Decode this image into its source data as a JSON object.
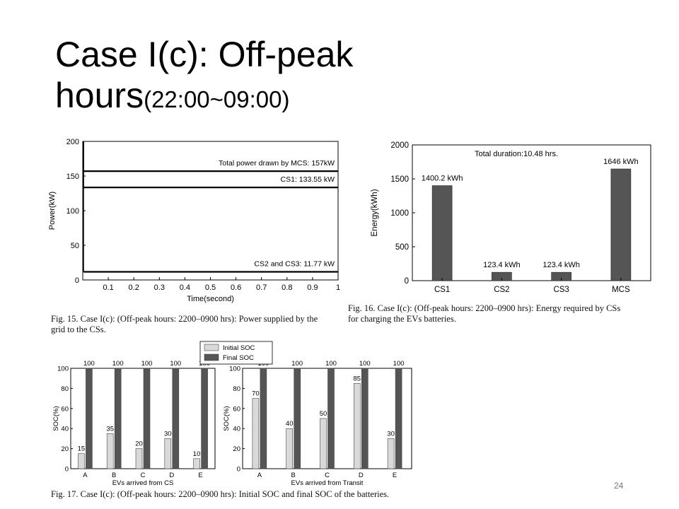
{
  "slide": {
    "title_main": "Case I(c): Off-peak",
    "title_line2": "hours",
    "title_suffix": "(22:00~09:00)",
    "page_number": "24"
  },
  "captions": {
    "fig15_line1": "Fig. 15.   Case I(c): (Off-peak hours: 2200–0900 hrs): Power supplied by the",
    "fig15_line2": "grid to the CSs.",
    "fig16_line1": "Fig. 16.   Case I(c): (Off-peak hours: 2200–0900 hrs): Energy required by CSs",
    "fig16_line2": "for charging the EVs batteries.",
    "fig17": "Fig. 17.   Case I(c): (Off-peak hours: 2200–0900 hrs): Initial SOC and final SOC of the batteries."
  },
  "chart_data": [
    {
      "id": "fig15",
      "type": "line",
      "xlabel": "Time(second)",
      "ylabel": "Power(kW)",
      "xlim": [
        0,
        1
      ],
      "ylim": [
        0,
        200
      ],
      "xticks": [
        0.1,
        0.2,
        0.3,
        0.4,
        0.5,
        0.6,
        0.7,
        0.8,
        0.9,
        1
      ],
      "xtick_labels": [
        "0.1",
        "0.2",
        "0.3",
        "0.4",
        "0.5",
        "0.6",
        "0.7",
        "0.8",
        "0.9",
        "1"
      ],
      "yticks": [
        0,
        50,
        100,
        150,
        200
      ],
      "ytick_labels": [
        "0",
        "50",
        "100",
        "150",
        "200"
      ],
      "series": [
        {
          "label": "Total power drawn by MCS: 157kW",
          "value": 157
        },
        {
          "label": "CS1: 133.55 kW",
          "value": 133.55
        },
        {
          "label": "CS2 and CS3: 11.77 kW",
          "value": 11.77
        }
      ]
    },
    {
      "id": "fig16",
      "type": "bar",
      "categories": [
        "CS1",
        "CS2",
        "CS3",
        "MCS"
      ],
      "values": [
        1400.2,
        123.4,
        123.4,
        1646
      ],
      "value_labels": [
        "1400.2 kWh",
        "123.4 kWh",
        "123.4 kWh",
        "1646 kWh"
      ],
      "ylabel": "Energy(kWh)",
      "ylim": [
        0,
        2000
      ],
      "yticks": [
        0,
        500,
        1000,
        1500,
        2000
      ],
      "ytick_labels": [
        "0",
        "500",
        "1000",
        "1500",
        "2000"
      ],
      "annotation": "Total duration:10.48 hrs.",
      "bar_color": "#555555"
    },
    {
      "id": "fig17a",
      "type": "bar",
      "categories": [
        "A",
        "B",
        "C",
        "D",
        "E"
      ],
      "xlabel": "EVs arrived from CS",
      "ylabel": "SOC(%)",
      "ylim": [
        0,
        100
      ],
      "yticks": [
        0,
        20,
        40,
        60,
        80,
        100
      ],
      "ytick_labels": [
        "0",
        "20",
        "40",
        "60",
        "80",
        "100"
      ],
      "series": [
        {
          "name": "Initial SOC",
          "values": [
            15,
            35,
            20,
            30,
            10
          ],
          "labels": [
            "15",
            "35",
            "20",
            "30",
            "10"
          ],
          "color": "#d9d9d9"
        },
        {
          "name": "Final SOC",
          "values": [
            100,
            100,
            100,
            100,
            100
          ],
          "labels": [
            "100",
            "100",
            "100",
            "100",
            "100"
          ],
          "color": "#555555"
        }
      ],
      "legend": [
        "Initial SOC",
        "Final SOC"
      ]
    },
    {
      "id": "fig17b",
      "type": "bar",
      "categories": [
        "A",
        "B",
        "C",
        "D",
        "E"
      ],
      "xlabel": "EVs arrived from Transit",
      "ylabel": "SOC(%)",
      "ylim": [
        0,
        100
      ],
      "yticks": [
        0,
        20,
        40,
        60,
        80,
        100
      ],
      "ytick_labels": [
        "0",
        "20",
        "40",
        "60",
        "80",
        "100"
      ],
      "series": [
        {
          "name": "Initial SOC",
          "values": [
            70,
            40,
            50,
            85,
            30
          ],
          "labels": [
            "70",
            "40",
            "50",
            "85",
            "30"
          ],
          "color": "#d9d9d9"
        },
        {
          "name": "Final SOC",
          "values": [
            100,
            100,
            100,
            100,
            100
          ],
          "labels": [
            "100",
            "100",
            "100",
            "100",
            "100"
          ],
          "color": "#555555"
        }
      ]
    }
  ]
}
